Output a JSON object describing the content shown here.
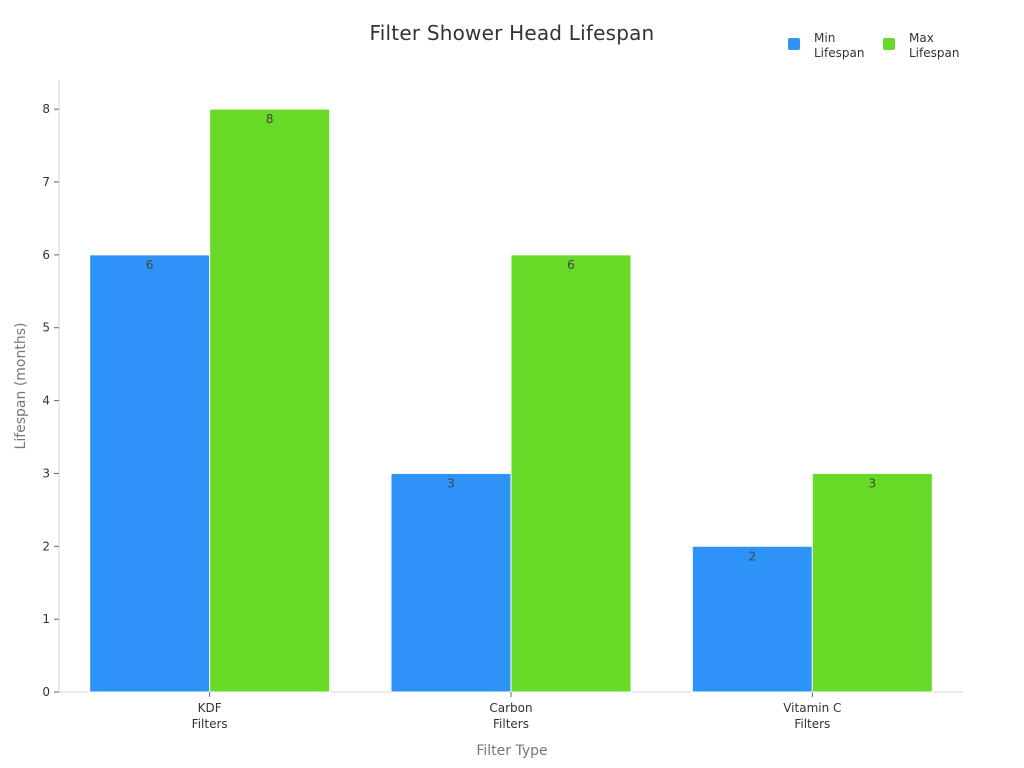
{
  "chart_data": {
    "type": "bar",
    "title": "Filter Shower Head Lifespan",
    "xlabel": "Filter Type",
    "ylabel": "Lifespan (months)",
    "categories": [
      [
        "KDF",
        "Filters"
      ],
      [
        "Carbon",
        "Filters"
      ],
      [
        "Vitamin C",
        "Filters"
      ]
    ],
    "series": [
      {
        "name": [
          "Min",
          "Lifespan"
        ],
        "values": [
          6,
          3,
          2
        ],
        "color": "#2E93F7"
      },
      {
        "name": [
          "Max",
          "Lifespan"
        ],
        "values": [
          8,
          6,
          3
        ],
        "color": "#66DA26"
      }
    ],
    "ylim": [
      0,
      8.4
    ],
    "yticks": [
      0,
      1,
      2,
      3,
      4,
      5,
      6,
      7,
      8
    ],
    "grid": false,
    "legend_position": "top-right",
    "data_labels": true
  }
}
